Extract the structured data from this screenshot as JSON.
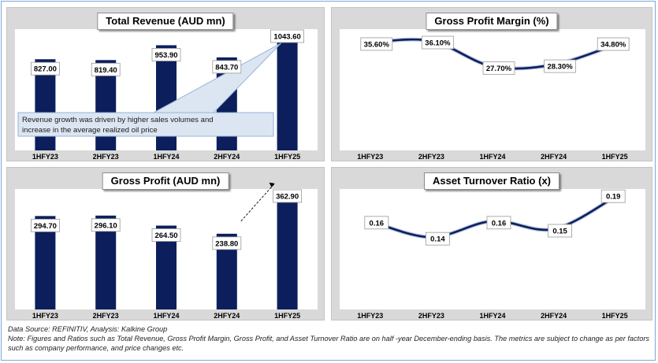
{
  "colors": {
    "bar": "#0c1f5c",
    "line": "#0c1f5c",
    "panel_bg": "#d9d9d9",
    "plot_bg": "#ffffff",
    "callout_fill": "#dce6f2",
    "callout_border": "#95b3d7"
  },
  "chart_data": [
    {
      "type": "bar",
      "title": "Total Revenue (AUD mn)",
      "categories": [
        "1HFY23",
        "2HFY23",
        "1HFY24",
        "2HFY24",
        "1HFY25"
      ],
      "values": [
        827.0,
        819.4,
        953.9,
        843.7,
        1043.6
      ],
      "value_labels": [
        "827.00",
        "819.40",
        "953.90",
        "843.70",
        "1043.60"
      ],
      "ylim": [
        0,
        1100
      ],
      "annotation": "Revenue growth was driven by higher sales volumes and increase in the average realized oil price",
      "grid": false
    },
    {
      "type": "line",
      "title": "Gross Profit Margin (%)",
      "categories": [
        "1HFY23",
        "2HFY23",
        "1HFY24",
        "2HFY24",
        "1HFY25"
      ],
      "values": [
        35.6,
        36.1,
        27.7,
        28.3,
        34.8
      ],
      "value_labels": [
        "35.60%",
        "36.10%",
        "27.70%",
        "28.30%",
        "34.80%"
      ],
      "ylim": [
        0,
        40
      ],
      "grid": false
    },
    {
      "type": "bar",
      "title": "Gross Profit (AUD mn)",
      "categories": [
        "1HFY23",
        "2HFY23",
        "1HFY24",
        "2HFY24",
        "1HFY25"
      ],
      "values": [
        294.7,
        296.1,
        264.5,
        238.8,
        362.9
      ],
      "value_labels": [
        "294.70",
        "296.10",
        "264.50",
        "238.80",
        "362.90"
      ],
      "ylim": [
        0,
        380
      ],
      "grid": false
    },
    {
      "type": "line",
      "title": "Asset Turnover Ratio (x)",
      "categories": [
        "1HFY23",
        "2HFY23",
        "1HFY24",
        "2HFY24",
        "1HFY25"
      ],
      "values": [
        0.16,
        0.14,
        0.16,
        0.15,
        0.19
      ],
      "value_labels": [
        "0.16",
        "0.14",
        "0.16",
        "0.15",
        "0.19"
      ],
      "ylim": [
        0.05,
        0.2
      ],
      "grid": false
    }
  ],
  "footer": {
    "source": "Data Source: REFINITIV, Analysis: Kalkine Group",
    "note": "Note: Figures and Ratios such as Total Revenue, Gross Profit Margin, Gross Profit, and Asset Turnover Ratio are on half -year December-ending basis. The metrics are subject to change as per factors such as company performance, and price changes etc."
  }
}
